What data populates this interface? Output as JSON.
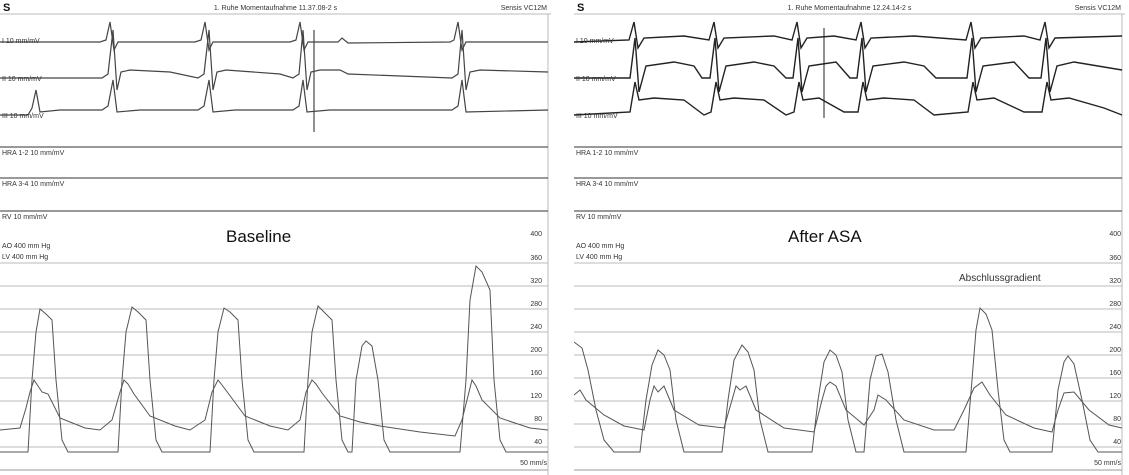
{
  "left": {
    "header_s": "S",
    "header_title": "1. Ruhe Momentaufnahme 11.37.08-2 s",
    "header_device": "Sensis VC12M",
    "leads": [
      "I  10 mm/mV",
      "II  10 mm/mV",
      "III  10 mm/mV"
    ],
    "channels": [
      "HRA 1-2  10 mm/mV",
      "HRA 3-4  10 mm/mV",
      "RV  10 mm/mV"
    ],
    "pressure_labels": [
      "AO  400 mm Hg",
      "LV  400 mm Hg"
    ],
    "label": "Baseline",
    "speed": "50 mm/s",
    "scale": [
      "400",
      "360",
      "320",
      "280",
      "240",
      "200",
      "160",
      "120",
      "80",
      "40"
    ]
  },
  "right": {
    "header_s": "S",
    "header_title": "1. Ruhe Momentaufnahme 12.24.14-2 s",
    "header_device": "Sensis VC12M",
    "leads": [
      "I  10 mm/mV",
      "II  10 mm/mV",
      "III  10 mm/mV"
    ],
    "channels": [
      "HRA 1-2  10 mm/mV",
      "HRA 3-4  10 mm/mV",
      "RV  10 mm/mV"
    ],
    "pressure_labels": [
      "AO  400 mm Hg",
      "LV  400 mm Hg"
    ],
    "label": "After ASA",
    "note": "Abschlussgradient",
    "speed": "50 mm/s",
    "scale": [
      "400",
      "360",
      "320",
      "280",
      "240",
      "200",
      "160",
      "120",
      "80",
      "40"
    ]
  }
}
